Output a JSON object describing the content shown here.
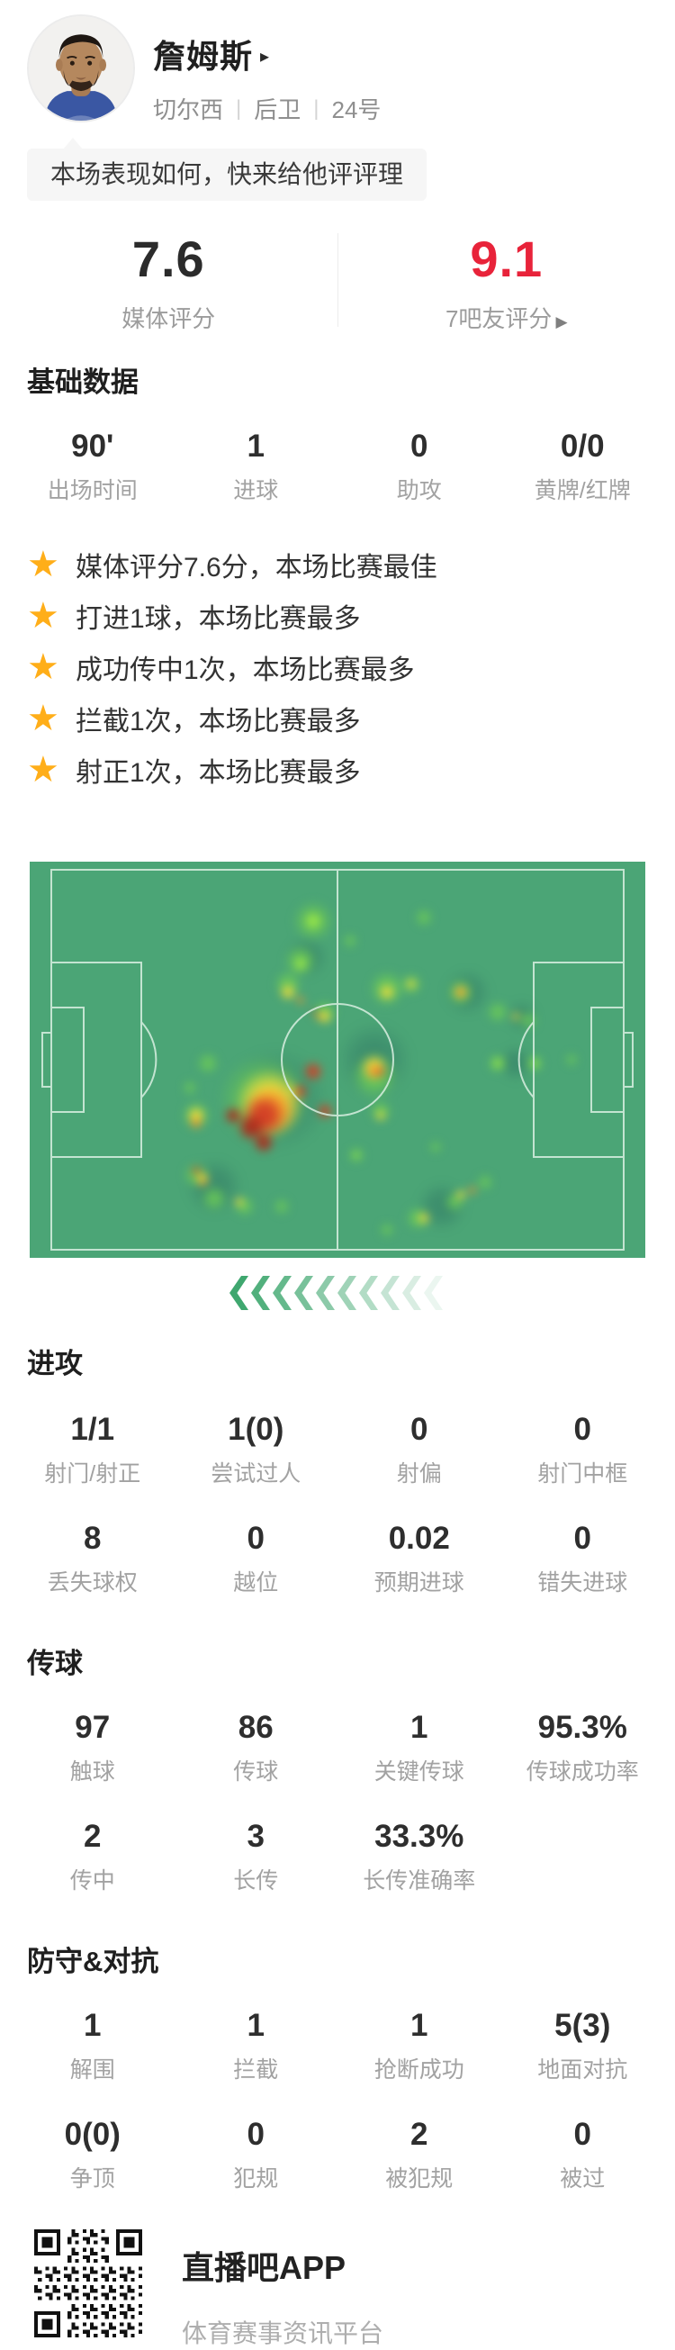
{
  "header": {
    "player_name": "詹姆斯",
    "name_arrow": "▸",
    "team": "切尔西",
    "position": "后卫",
    "shirt_number": "24号",
    "separator": "|"
  },
  "prompt": {
    "text": "本场表现如何，快来给他评评理"
  },
  "ratings": {
    "media_value": "7.6",
    "media_label": "媒体评分",
    "fan_value": "9.1",
    "fan_label": "7吧友评分",
    "fan_arrow": "▶",
    "fan_color": "#e8233a"
  },
  "basic": {
    "title": "基础数据",
    "stats": [
      {
        "value": "90'",
        "label": "出场时间"
      },
      {
        "value": "1",
        "label": "进球"
      },
      {
        "value": "0",
        "label": "助攻"
      },
      {
        "value": "0/0",
        "label": "黄牌/红牌"
      }
    ]
  },
  "highlights": {
    "star_icon": "★",
    "star_color": "#ffae19",
    "items": [
      {
        "text": "媒体评分7.6分，本场比赛最佳"
      },
      {
        "text": "打进1球，本场比赛最多"
      },
      {
        "text": "成功传中1次，本场比赛最多"
      },
      {
        "text": "拦截1次，本场比赛最多"
      },
      {
        "text": "射正1次，本场比赛最多"
      }
    ]
  },
  "heatmap": {
    "pitch_color": "#4ba576",
    "line_color": "#d9efe1",
    "chevron_color": "#3fa76f",
    "chevron_count": 10,
    "palette": {
      "s": "rgba(35,98,92,0.33)",
      "g": "rgba(110,205,85,0.80)",
      "G": "rgba(160,235,70,0.95)",
      "y": "rgba(246,222,58,0.95)",
      "o": "rgba(243,146,42,0.95)",
      "r": "rgba(210,62,38,0.95)",
      "d": "rgba(173,42,28,0.95)"
    },
    "blobs": [
      [
        40,
        60,
        58,
        "s"
      ],
      [
        56,
        50,
        42,
        "s"
      ],
      [
        30,
        82,
        32,
        "s"
      ],
      [
        67,
        87,
        28,
        "s"
      ],
      [
        71,
        33,
        26,
        "s"
      ],
      [
        45,
        24,
        24,
        "s"
      ],
      [
        79,
        51,
        20,
        "s"
      ],
      [
        46,
        15,
        18,
        "s"
      ],
      [
        80,
        39,
        18,
        "s"
      ],
      [
        46,
        15,
        23,
        "g"
      ],
      [
        44,
        25,
        18,
        "g"
      ],
      [
        42,
        31,
        15,
        "g"
      ],
      [
        48,
        38,
        13,
        "g"
      ],
      [
        52,
        20,
        8,
        "g"
      ],
      [
        58,
        32,
        20,
        "g"
      ],
      [
        62,
        31,
        12,
        "g"
      ],
      [
        64,
        14,
        10,
        "g"
      ],
      [
        70,
        33,
        15,
        "g"
      ],
      [
        76,
        38,
        12,
        "g"
      ],
      [
        81,
        40,
        10,
        "g"
      ],
      [
        76,
        51,
        11,
        "g"
      ],
      [
        82,
        51,
        10,
        "g"
      ],
      [
        88,
        50,
        7,
        "g"
      ],
      [
        56,
        54,
        26,
        "g"
      ],
      [
        57,
        63,
        12,
        "g"
      ],
      [
        53,
        74,
        9,
        "g"
      ],
      [
        66,
        72,
        7,
        "g"
      ],
      [
        38,
        60,
        50,
        "g"
      ],
      [
        29,
        51,
        12,
        "g"
      ],
      [
        27,
        64,
        16,
        "g"
      ],
      [
        26,
        57,
        8,
        "g"
      ],
      [
        27,
        79,
        14,
        "g"
      ],
      [
        30,
        85,
        14,
        "g"
      ],
      [
        35,
        87,
        11,
        "g"
      ],
      [
        41,
        87,
        9,
        "g"
      ],
      [
        63,
        90,
        13,
        "g"
      ],
      [
        69,
        86,
        11,
        "g"
      ],
      [
        74,
        81,
        9,
        "g"
      ],
      [
        58,
        93,
        8,
        "g"
      ],
      [
        46,
        15,
        10,
        "G"
      ],
      [
        44,
        26,
        8,
        "G"
      ],
      [
        76,
        51,
        6,
        "G"
      ],
      [
        82,
        51,
        5,
        "G"
      ],
      [
        53,
        74,
        4,
        "G"
      ],
      [
        43,
        58,
        7,
        "G"
      ],
      [
        39,
        61,
        38,
        "y"
      ],
      [
        42,
        33,
        9,
        "y"
      ],
      [
        48,
        39,
        8,
        "y"
      ],
      [
        58,
        33,
        9,
        "y"
      ],
      [
        62,
        31,
        6,
        "y"
      ],
      [
        56,
        52,
        15,
        "y"
      ],
      [
        57,
        64,
        6,
        "y"
      ],
      [
        70,
        33,
        9,
        "y"
      ],
      [
        79,
        39,
        5,
        "y"
      ],
      [
        27,
        64,
        10,
        "y"
      ],
      [
        28,
        80,
        8,
        "y"
      ],
      [
        34,
        86,
        6,
        "y"
      ],
      [
        64,
        90,
        7,
        "y"
      ],
      [
        70,
        84,
        6,
        "y"
      ],
      [
        39,
        63,
        29,
        "o"
      ],
      [
        27,
        66,
        7,
        "o"
      ],
      [
        28,
        81,
        5,
        "o"
      ],
      [
        56,
        53,
        9,
        "o"
      ],
      [
        72,
        83,
        5,
        "o"
      ],
      [
        47,
        39,
        4,
        "o"
      ],
      [
        70,
        33,
        5,
        "o"
      ],
      [
        44,
        35,
        5,
        "o"
      ],
      [
        38,
        64,
        24,
        "r"
      ],
      [
        46,
        53,
        11,
        "r"
      ],
      [
        48,
        63,
        9,
        "r"
      ],
      [
        44,
        58,
        8,
        "r"
      ],
      [
        57,
        53,
        5,
        "r"
      ],
      [
        70,
        33,
        3,
        "r"
      ],
      [
        46,
        38,
        3,
        "r"
      ],
      [
        27,
        78,
        5,
        "r"
      ],
      [
        36,
        67,
        16,
        "d"
      ],
      [
        38,
        71,
        12,
        "d"
      ],
      [
        33,
        64,
        10,
        "d"
      ]
    ]
  },
  "attack": {
    "title": "进攻",
    "stats": [
      {
        "value": "1/1",
        "label": "射门/射正"
      },
      {
        "value": "1(0)",
        "label": "尝试过人"
      },
      {
        "value": "0",
        "label": "射偏"
      },
      {
        "value": "0",
        "label": "射门中框"
      },
      {
        "value": "8",
        "label": "丢失球权"
      },
      {
        "value": "0",
        "label": "越位"
      },
      {
        "value": "0.02",
        "label": "预期进球"
      },
      {
        "value": "0",
        "label": "错失进球"
      }
    ]
  },
  "passing": {
    "title": "传球",
    "stats": [
      {
        "value": "97",
        "label": "触球"
      },
      {
        "value": "86",
        "label": "传球"
      },
      {
        "value": "1",
        "label": "关键传球"
      },
      {
        "value": "95.3%",
        "label": "传球成功率"
      },
      {
        "value": "2",
        "label": "传中"
      },
      {
        "value": "3",
        "label": "长传"
      },
      {
        "value": "33.3%",
        "label": "长传准确率"
      }
    ]
  },
  "defense": {
    "title": "防守&对抗",
    "stats": [
      {
        "value": "1",
        "label": "解围"
      },
      {
        "value": "1",
        "label": "拦截"
      },
      {
        "value": "1",
        "label": "抢断成功"
      },
      {
        "value": "5(3)",
        "label": "地面对抗"
      },
      {
        "value": "0(0)",
        "label": "争顶"
      },
      {
        "value": "0",
        "label": "犯规"
      },
      {
        "value": "2",
        "label": "被犯规"
      },
      {
        "value": "0",
        "label": "被过"
      }
    ]
  },
  "footer": {
    "app_name": "直播吧APP",
    "tagline": "体育赛事资讯平台"
  }
}
